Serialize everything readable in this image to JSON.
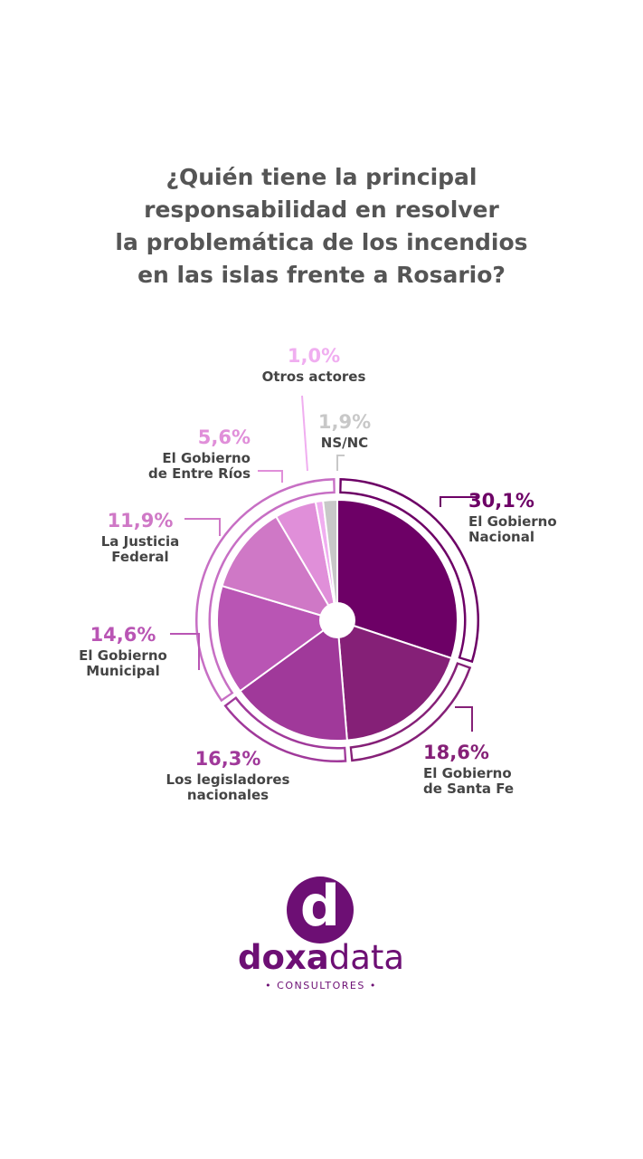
{
  "title_lines": [
    "¿Quién tiene la principal",
    "responsabilidad en resolver",
    "la problemática de los incendios",
    "en las islas frente a Rosario?"
  ],
  "chart_data": {
    "type": "pie",
    "title": "¿Quién tiene la principal responsabilidad en resolver la problemática de los incendios en las islas frente a Rosario?",
    "slices": [
      {
        "pct_label": "30,1%",
        "value": 30.1,
        "label_lines": [
          "El Gobierno",
          "Nacional"
        ],
        "color": "#6d0066"
      },
      {
        "pct_label": "18,6%",
        "value": 18.6,
        "label_lines": [
          "El Gobierno",
          "de Santa Fe"
        ],
        "color": "#852077"
      },
      {
        "pct_label": "16,3%",
        "value": 16.3,
        "label_lines": [
          "Los legisladores",
          "nacionales"
        ],
        "color": "#a0399a"
      },
      {
        "pct_label": "14,6%",
        "value": 14.6,
        "label_lines": [
          "El  Gobierno",
          "Municipal"
        ],
        "color": "#b955b4"
      },
      {
        "pct_label": "11,9%",
        "value": 11.9,
        "label_lines": [
          "La Justicia",
          "Federal"
        ],
        "color": "#cf78c6"
      },
      {
        "pct_label": "5,6%",
        "value": 5.6,
        "label_lines": [
          "El Gobierno",
          "de Entre Ríos"
        ],
        "color": "#e08fd9"
      },
      {
        "pct_label": "1,0%",
        "value": 1.0,
        "label_lines": [
          "Otros actores"
        ],
        "color": "#f0aef0"
      },
      {
        "pct_label": "1,9%",
        "value": 1.9,
        "label_lines": [
          "NS/NC"
        ],
        "color": "#c8c8c8"
      }
    ]
  },
  "logo": {
    "mark_letter": "d",
    "name_part1": "doxa",
    "name_part2": "data",
    "subtitle": "• CONSULTORES •",
    "color": "#6d0f74"
  }
}
